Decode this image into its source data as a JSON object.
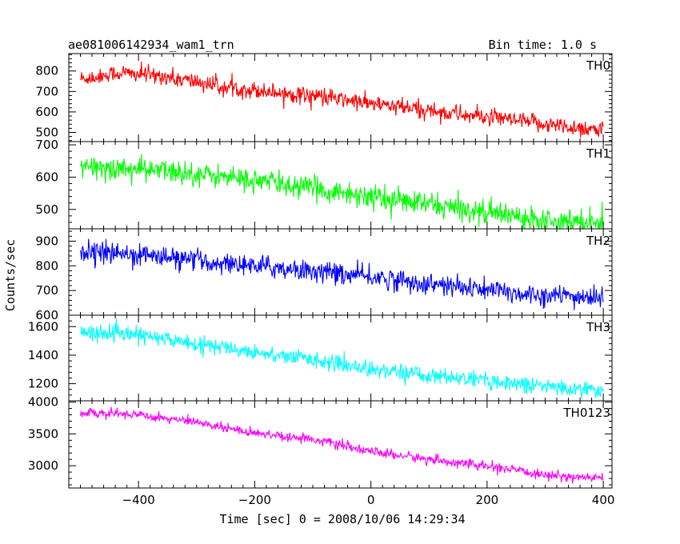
{
  "chart_data": {
    "type": "line",
    "title": "ae081006142934_wam1_trn",
    "bin_time": "Bin time: 1.0 s",
    "xlabel": "Time [sec] 0 = 2008/10/06 14:29:34",
    "ylabel": "Counts/sec",
    "xlim": [
      -520,
      415
    ],
    "xticks": [
      -400,
      -200,
      0,
      200,
      400
    ],
    "xtick_labels": [
      "−400",
      "−200",
      "0",
      "200",
      "400"
    ],
    "x_start": -500,
    "x_end": 400,
    "panels": [
      {
        "name": "TH0",
        "color": "#ff0000",
        "ylim": [
          455,
          885
        ],
        "yticks": [
          500,
          600,
          700,
          800
        ],
        "trend": [
          [
            -500,
            760
          ],
          [
            -430,
            790
          ],
          [
            -360,
            775
          ],
          [
            -250,
            720
          ],
          [
            -100,
            680
          ],
          [
            0,
            640
          ],
          [
            150,
            590
          ],
          [
            250,
            555
          ],
          [
            400,
            510
          ]
        ],
        "noise": 35
      },
      {
        "name": "TH1",
        "color": "#00ff00",
        "ylim": [
          440,
          710
        ],
        "yticks": [
          500,
          600,
          700
        ],
        "trend": [
          [
            -500,
            630
          ],
          [
            -400,
            625
          ],
          [
            -300,
            610
          ],
          [
            -200,
            590
          ],
          [
            -100,
            565
          ],
          [
            0,
            540
          ],
          [
            100,
            515
          ],
          [
            200,
            490
          ],
          [
            300,
            470
          ],
          [
            400,
            460
          ]
        ],
        "noise": 30
      },
      {
        "name": "TH2",
        "color": "#0000ff",
        "ylim": [
          600,
          950
        ],
        "yticks": [
          600,
          700,
          800,
          900
        ],
        "trend": [
          [
            -500,
            860
          ],
          [
            -400,
            845
          ],
          [
            -300,
            820
          ],
          [
            -200,
            800
          ],
          [
            -100,
            780
          ],
          [
            0,
            755
          ],
          [
            100,
            725
          ],
          [
            200,
            700
          ],
          [
            300,
            680
          ],
          [
            400,
            670
          ]
        ],
        "noise": 35
      },
      {
        "name": "TH3",
        "color": "#00ffff",
        "ylim": [
          1080,
          1680
        ],
        "yticks": [
          1200,
          1400,
          1600
        ],
        "trend": [
          [
            -500,
            1560
          ],
          [
            -400,
            1540
          ],
          [
            -300,
            1480
          ],
          [
            -200,
            1420
          ],
          [
            -100,
            1370
          ],
          [
            0,
            1300
          ],
          [
            100,
            1260
          ],
          [
            200,
            1220
          ],
          [
            300,
            1180
          ],
          [
            400,
            1150
          ]
        ],
        "noise": 45
      },
      {
        "name": "TH0123",
        "color": "#ff00ff",
        "ylim": [
          2650,
          4020
        ],
        "yticks": [
          3000,
          3500,
          4000
        ],
        "trend": [
          [
            -500,
            3830
          ],
          [
            -400,
            3810
          ],
          [
            -300,
            3680
          ],
          [
            -200,
            3520
          ],
          [
            -100,
            3420
          ],
          [
            0,
            3220
          ],
          [
            100,
            3100
          ],
          [
            200,
            2990
          ],
          [
            300,
            2850
          ],
          [
            400,
            2800
          ]
        ],
        "noise": 60
      }
    ]
  }
}
